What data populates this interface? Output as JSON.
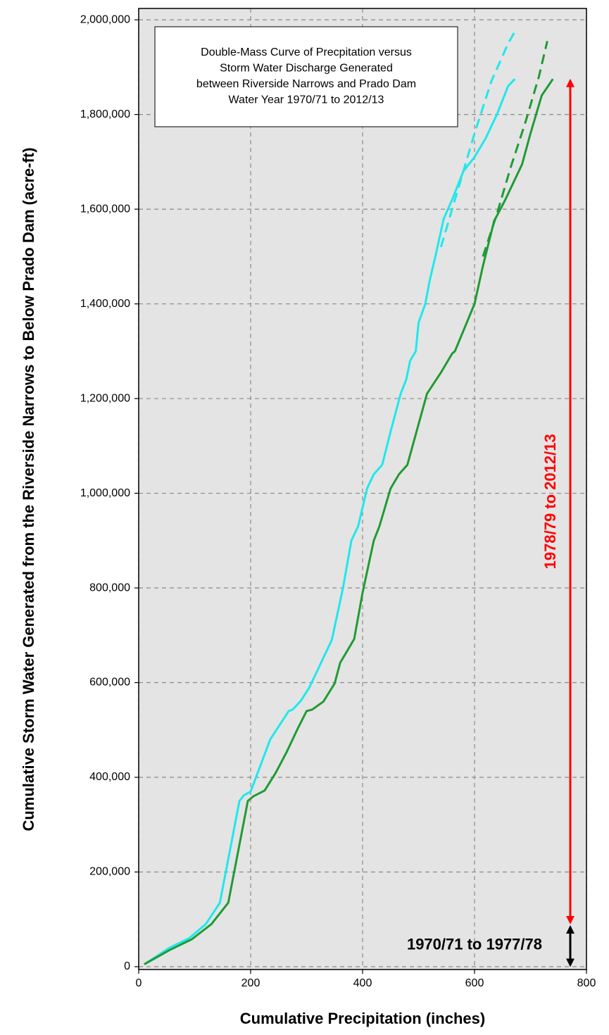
{
  "chart_data": {
    "type": "line",
    "title": [
      "Double-Mass Curve of Precpitation versus",
      "Storm Water Discharge Generated",
      "between Riverside Narrows and Prado Dam",
      "Water Year 1970/71 to 2012/13"
    ],
    "x_label": "Cumulative Precipitation (inches)",
    "y_label": "Cumulative Storm Water Generated from the Riverside Narrows to Below Prado Dam (acre-ft)",
    "xlim": [
      0,
      800
    ],
    "xticks": [
      0,
      200,
      400,
      600,
      800
    ],
    "ylim": [
      -6000,
      2024000
    ],
    "yticks": [
      0,
      {
        "value": 200000,
        "label": "200,000"
      },
      {
        "value": 400000,
        "label": "400,000"
      },
      {
        "value": 600000,
        "label": "600,000"
      },
      {
        "value": 800000,
        "label": "800,000"
      },
      {
        "value": 1000000,
        "label": "1,000,000"
      },
      {
        "value": 1200000,
        "label": "1,200,000"
      },
      {
        "value": 1400000,
        "label": "1,400,000"
      },
      {
        "value": 1600000,
        "label": "1,600,000"
      },
      {
        "value": 1800000,
        "label": "1,800,000"
      },
      {
        "value": 2000000,
        "label": "2,000,000"
      }
    ],
    "grid": true,
    "series": [
      {
        "color": "#1fe8ec",
        "dashed": false,
        "x": [
          10,
          55,
          90,
          120,
          145,
          180,
          188,
          200,
          235,
          268,
          275,
          290,
          305,
          325,
          345,
          365,
          380,
          392,
          400,
          408,
          420,
          435,
          450,
          468,
          478,
          485,
          495,
          500,
          512,
          520,
          530,
          545,
          560,
          580,
          600,
          620,
          640,
          660
        ],
        "values": [
          5000,
          40000,
          60000,
          90000,
          135000,
          350000,
          362000,
          370000,
          480000,
          540000,
          543000,
          562000,
          590000,
          640000,
          690000,
          800000,
          900000,
          930000,
          970000,
          1010000,
          1040000,
          1060000,
          1130000,
          1210000,
          1240000,
          1280000,
          1300000,
          1360000,
          1400000,
          1450000,
          1500000,
          1580000,
          1620000,
          1680000,
          1710000,
          1750000,
          1800000,
          1860000
        ]
      },
      {
        "color": "#1f9b34",
        "dashed": false,
        "x": [
          10,
          55,
          95,
          130,
          160,
          195,
          205,
          225,
          245,
          265,
          285,
          300,
          310,
          330,
          350,
          360,
          385,
          400,
          420,
          430,
          450,
          465,
          480,
          515,
          540,
          560,
          565,
          600,
          615,
          635,
          655,
          685,
          700,
          720,
          740
        ],
        "values": [
          5000,
          35000,
          58000,
          90000,
          135000,
          350000,
          360000,
          372000,
          410000,
          455000,
          505000,
          540000,
          543000,
          560000,
          598000,
          642000,
          692000,
          790000,
          900000,
          930000,
          1010000,
          1040000,
          1060000,
          1210000,
          1255000,
          1295000,
          1300000,
          1400000,
          1480000,
          1575000,
          1620000,
          1695000,
          1760000,
          1840000,
          1875000
        ]
      },
      {
        "color": "#1fe8ec",
        "dashed": true,
        "x": [
          540,
          560,
          600,
          630,
          660,
          672
        ],
        "values": [
          1520000,
          1600000,
          1760000,
          1870000,
          1950000,
          1975000
        ]
      },
      {
        "color": "#1fe8ec",
        "dashed": true,
        "x": [
          660,
          672
        ],
        "values": [
          1860000,
          1875000
        ]
      },
      {
        "color": "#1f9b34",
        "dashed": true,
        "x": [
          615,
          640,
          665,
          690,
          715,
          730
        ],
        "values": [
          1500000,
          1590000,
          1690000,
          1780000,
          1880000,
          1955000
        ]
      }
    ],
    "annotations": [
      {
        "text": "1978/79 to 2012/13",
        "color": "#ff0000"
      },
      {
        "text": "1970/71 to 1977/78",
        "color": "#000000"
      }
    ]
  }
}
